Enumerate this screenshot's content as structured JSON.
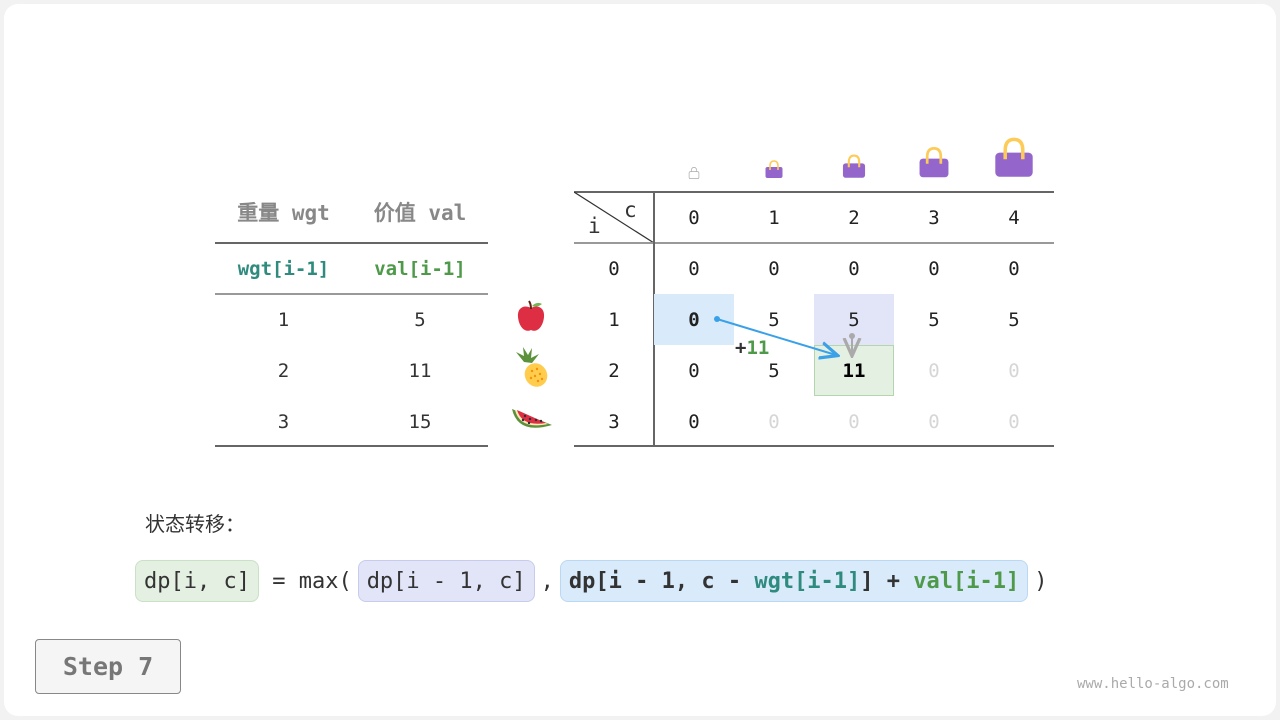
{
  "item_table": {
    "headers": [
      "重量 wgt",
      "价值 val"
    ],
    "subheaders": [
      "wgt[i-1]",
      "val[i-1]"
    ],
    "rows": [
      {
        "wgt": "1",
        "val": "5",
        "item_icon": "apple-icon"
      },
      {
        "wgt": "2",
        "val": "11",
        "item_icon": "pineapple-icon"
      },
      {
        "wgt": "3",
        "val": "15",
        "item_icon": "watermelon-icon"
      }
    ]
  },
  "dp_table": {
    "corner_col_label": "c",
    "corner_row_label": "i",
    "capacity_icons": [
      "bag-empty-icon",
      "bag-icon",
      "bag-icon",
      "bag-icon",
      "bag-icon"
    ],
    "col_headers": [
      "0",
      "1",
      "2",
      "3",
      "4"
    ],
    "row_headers": [
      "0",
      "1",
      "2",
      "3"
    ],
    "cells": [
      [
        {
          "v": "0"
        },
        {
          "v": "0"
        },
        {
          "v": "0"
        },
        {
          "v": "0"
        },
        {
          "v": "0"
        }
      ],
      [
        {
          "v": "0",
          "state": "hl-blue"
        },
        {
          "v": "5"
        },
        {
          "v": "5",
          "state": "hl-purple"
        },
        {
          "v": "5"
        },
        {
          "v": "5"
        }
      ],
      [
        {
          "v": "0"
        },
        {
          "v": "5"
        },
        {
          "v": "11",
          "state": "hl-green"
        },
        {
          "v": "0",
          "state": "gray"
        },
        {
          "v": "0",
          "state": "gray"
        }
      ],
      [
        {
          "v": "0"
        },
        {
          "v": "0",
          "state": "gray"
        },
        {
          "v": "0",
          "state": "gray"
        },
        {
          "v": "0",
          "state": "gray"
        },
        {
          "v": "0",
          "state": "gray"
        }
      ]
    ],
    "annotation_prefix": "+",
    "annotation_value": "11"
  },
  "transition": {
    "label": "状态转移：",
    "lhs": "dp[i, c]",
    "eq": " = max(",
    "opt1": "dp[i - 1, c]",
    "comma": ",",
    "opt2_prefix": "dp[i - 1, c - ",
    "opt2_wgt": "wgt[i-1]",
    "opt2_mid": "] + ",
    "opt2_val": "val[i-1]",
    "close": ")"
  },
  "step_button": "Step 7",
  "footer": "www.hello-algo.com",
  "colors": {
    "teal": "#2e8b7e",
    "green": "#4f9a4a",
    "blue_highlight": "#d9ebfb",
    "purple_highlight": "#e2e5f8",
    "green_highlight": "#e4f0e2",
    "bag": "#9466cc",
    "arrow": "#3aa0e8"
  }
}
